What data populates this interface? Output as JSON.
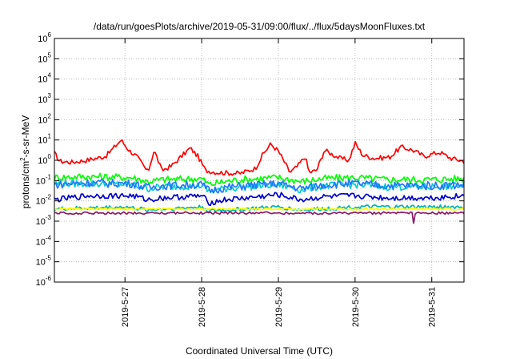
{
  "chart_data": {
    "type": "line",
    "title": "/data/run/goesPlots/archive/2019-05-31/09:00/flux/../flux/5daysMoonFluxes.txt",
    "xlabel": "Coordinated Universal Time (UTC)",
    "ylabel": "protons/cm2-s-sr-MeV",
    "ylabel_parts": {
      "pre": "protons/cm",
      "sup": "2",
      "post": "-s-sr-MeV"
    },
    "yscale": "log",
    "ylim_exp": [
      -6,
      6
    ],
    "ytick_base": "10",
    "ytick_exponents": [
      "-6",
      "-5",
      "-4",
      "-3",
      "-2",
      "-1",
      "0",
      "1",
      "2",
      "3",
      "4",
      "5",
      "6"
    ],
    "xlim_days": [
      26.08,
      31.42
    ],
    "xticks": [
      {
        "day": 27,
        "label": "2019-5-27"
      },
      {
        "day": 28,
        "label": "2019-5-28"
      },
      {
        "day": 29,
        "label": "2019-5-29"
      },
      {
        "day": 30,
        "label": "2019-5-30"
      },
      {
        "day": 31,
        "label": "2019-5-31"
      }
    ],
    "grid": true,
    "series": [
      {
        "color": "#ff0000",
        "base": 0.0,
        "amp": 0.12,
        "keys": [
          [
            26.08,
            0.35
          ],
          [
            26.15,
            -0.05
          ],
          [
            26.3,
            -0.1
          ],
          [
            26.5,
            0.0
          ],
          [
            26.75,
            0.2
          ],
          [
            26.95,
            1.0
          ],
          [
            27.05,
            0.5
          ],
          [
            27.15,
            0.2
          ],
          [
            27.22,
            -0.15
          ],
          [
            27.3,
            -0.6
          ],
          [
            27.38,
            0.5
          ],
          [
            27.48,
            -0.5
          ],
          [
            27.6,
            -0.3
          ],
          [
            27.85,
            0.6
          ],
          [
            27.95,
            0.2
          ],
          [
            28.05,
            -0.5
          ],
          [
            28.2,
            -0.6
          ],
          [
            28.5,
            -0.65
          ],
          [
            28.7,
            -0.4
          ],
          [
            28.8,
            0.3
          ],
          [
            28.9,
            0.8
          ],
          [
            29.0,
            0.45
          ],
          [
            29.08,
            -0.1
          ],
          [
            29.15,
            -0.6
          ],
          [
            29.25,
            -0.3
          ],
          [
            29.35,
            0.2
          ],
          [
            29.4,
            -0.6
          ],
          [
            29.5,
            -0.5
          ],
          [
            29.6,
            0.5
          ],
          [
            29.7,
            0.3
          ],
          [
            29.8,
            0.1
          ],
          [
            29.92,
            0.0
          ],
          [
            30.0,
            0.85
          ],
          [
            30.1,
            0.25
          ],
          [
            30.25,
            0.1
          ],
          [
            30.45,
            0.15
          ],
          [
            30.6,
            0.65
          ],
          [
            30.75,
            0.5
          ],
          [
            30.9,
            0.2
          ],
          [
            31.1,
            0.4
          ],
          [
            31.25,
            0.1
          ],
          [
            31.42,
            -0.05
          ]
        ]
      },
      {
        "color": "#00ff00",
        "base": -0.95,
        "amp": 0.18,
        "keys": [
          [
            26.08,
            -0.85
          ],
          [
            26.5,
            -0.8
          ],
          [
            27.1,
            -0.85
          ],
          [
            27.3,
            -1.05
          ],
          [
            27.5,
            -0.95
          ],
          [
            28.0,
            -0.9
          ],
          [
            28.1,
            -1.2
          ],
          [
            28.3,
            -1.05
          ],
          [
            28.5,
            -0.95
          ],
          [
            29.0,
            -0.85
          ],
          [
            29.3,
            -1.05
          ],
          [
            29.6,
            -0.9
          ],
          [
            30.0,
            -0.85
          ],
          [
            30.4,
            -0.95
          ],
          [
            31.0,
            -0.95
          ],
          [
            31.42,
            -0.9
          ]
        ]
      },
      {
        "color": "#00cccc",
        "base": -1.25,
        "amp": 0.18,
        "keys": [
          [
            26.08,
            -1.15
          ],
          [
            26.5,
            -1.15
          ],
          [
            27.1,
            -1.2
          ],
          [
            27.3,
            -1.4
          ],
          [
            27.5,
            -1.3
          ],
          [
            28.0,
            -1.25
          ],
          [
            28.1,
            -1.55
          ],
          [
            28.3,
            -1.4
          ],
          [
            28.6,
            -1.3
          ],
          [
            29.0,
            -1.2
          ],
          [
            29.3,
            -1.45
          ],
          [
            29.6,
            -1.25
          ],
          [
            30.0,
            -1.2
          ],
          [
            30.4,
            -1.3
          ],
          [
            31.0,
            -1.3
          ],
          [
            31.42,
            -1.25
          ]
        ]
      },
      {
        "color": "#1e78ff",
        "base": -1.3,
        "amp": 0.2,
        "keys": [
          [
            26.08,
            -1.2
          ],
          [
            26.5,
            -1.1
          ],
          [
            27.1,
            -1.15
          ],
          [
            27.3,
            -1.35
          ],
          [
            27.5,
            -1.25
          ],
          [
            28.0,
            -1.2
          ],
          [
            28.1,
            -1.5
          ],
          [
            28.3,
            -1.35
          ],
          [
            28.6,
            -1.25
          ],
          [
            29.0,
            -1.15
          ],
          [
            29.3,
            -1.4
          ],
          [
            29.6,
            -1.2
          ],
          [
            30.0,
            -1.15
          ],
          [
            30.4,
            -1.25
          ],
          [
            31.0,
            -1.25
          ],
          [
            31.42,
            -1.2
          ]
        ]
      },
      {
        "color": "#0000cc",
        "base": -1.8,
        "amp": 0.14,
        "keys": [
          [
            26.08,
            -1.95
          ],
          [
            26.5,
            -1.75
          ],
          [
            27.1,
            -1.75
          ],
          [
            27.3,
            -1.95
          ],
          [
            27.5,
            -1.85
          ],
          [
            28.0,
            -1.75
          ],
          [
            28.1,
            -2.1
          ],
          [
            28.3,
            -1.95
          ],
          [
            28.6,
            -1.85
          ],
          [
            29.0,
            -1.7
          ],
          [
            29.3,
            -1.95
          ],
          [
            29.6,
            -1.8
          ],
          [
            30.0,
            -1.75
          ],
          [
            30.4,
            -1.85
          ],
          [
            31.0,
            -1.85
          ],
          [
            31.42,
            -1.75
          ]
        ]
      },
      {
        "color": "#00b4b4",
        "base": -2.3,
        "amp": 0.1,
        "keys": [
          [
            26.08,
            -2.4
          ],
          [
            27.0,
            -2.3
          ],
          [
            27.3,
            -2.45
          ],
          [
            28.0,
            -2.3
          ],
          [
            28.1,
            -2.5
          ],
          [
            29.0,
            -2.3
          ],
          [
            29.3,
            -2.45
          ],
          [
            30.0,
            -2.3
          ],
          [
            31.42,
            -2.3
          ]
        ]
      },
      {
        "color": "#ffff00",
        "base": -2.4,
        "amp": 0.05,
        "keys": [
          [
            26.08,
            -2.4
          ],
          [
            28.0,
            -2.4
          ],
          [
            29.0,
            -2.4
          ],
          [
            30.0,
            -2.4
          ],
          [
            31.42,
            -2.4
          ]
        ]
      },
      {
        "color": "#8b1a6b",
        "base": -2.6,
        "amp": 0.06,
        "keys": [
          [
            26.08,
            -2.6
          ],
          [
            28.0,
            -2.6
          ],
          [
            30.0,
            -2.6
          ],
          [
            31.42,
            -2.6
          ]
        ]
      }
    ]
  }
}
